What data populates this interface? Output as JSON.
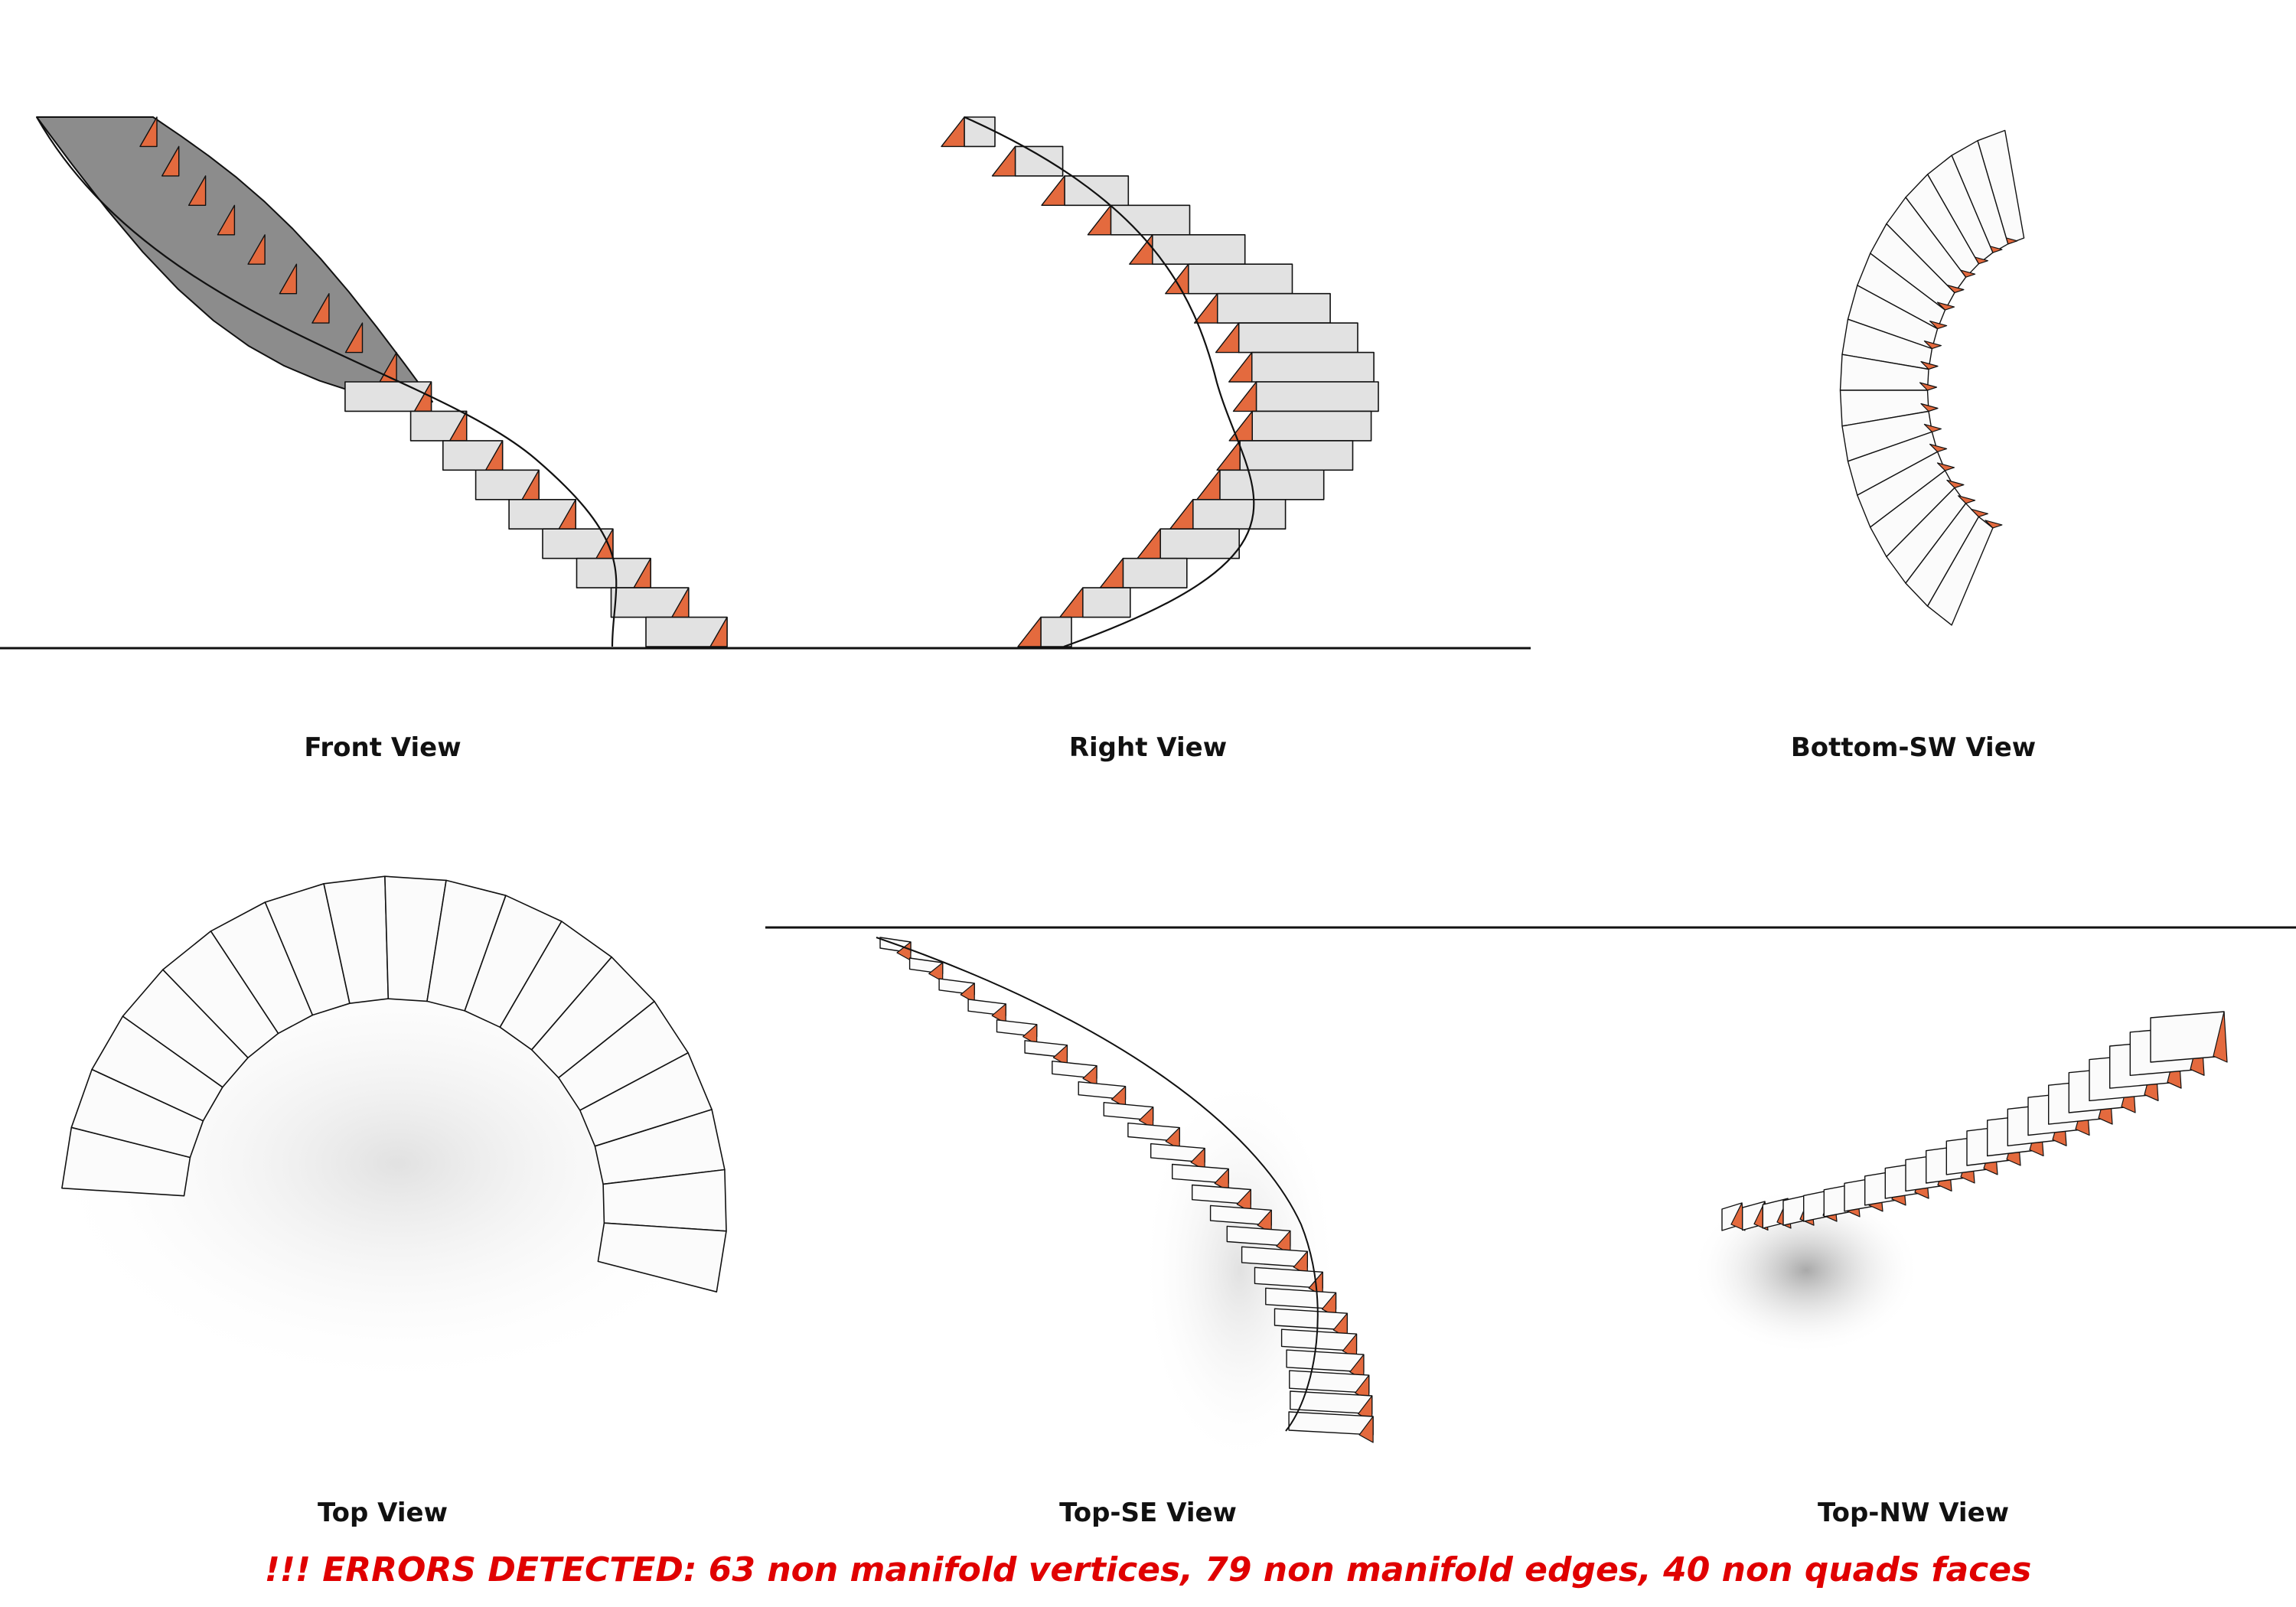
{
  "views": [
    {
      "id": "front",
      "label": "Front View"
    },
    {
      "id": "right",
      "label": "Right View"
    },
    {
      "id": "bottom-sw",
      "label": "Bottom-SW View"
    },
    {
      "id": "top",
      "label": "Top View"
    },
    {
      "id": "top-se",
      "label": "Top-SE View"
    },
    {
      "id": "top-nw",
      "label": "Top-NW View"
    }
  ],
  "error_message": "!!! ERRORS DETECTED: 63 non manifold vertices, 79 non manifold edges, 40 non quads faces",
  "colors": {
    "tread": "#e2e2e2",
    "tread_light": "#fbfbfb",
    "riser_side": "#e46a3e",
    "underside": "#8c8c8c",
    "outline": "#111111",
    "ground_line": "#111111",
    "error_text": "#e00000"
  }
}
